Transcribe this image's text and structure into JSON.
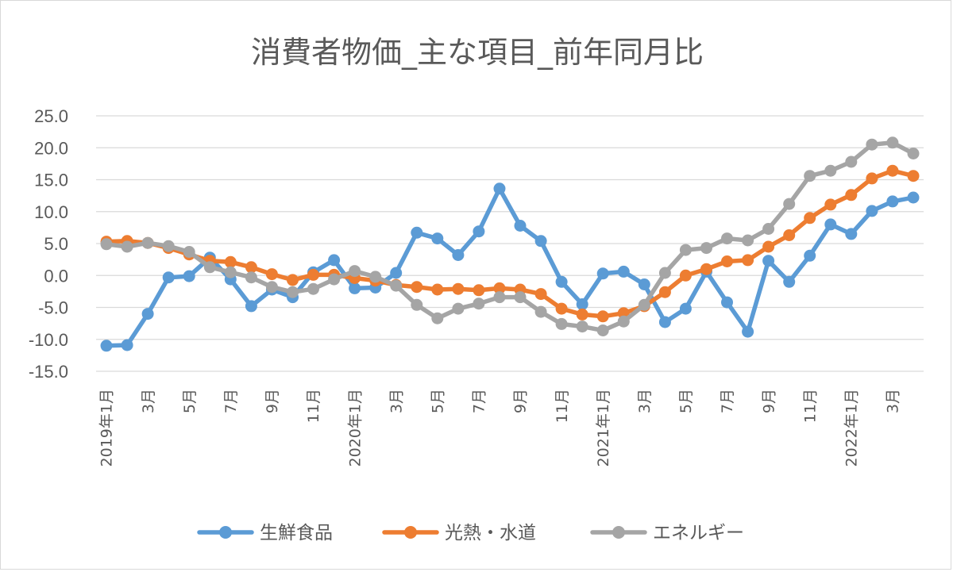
{
  "chart_data": {
    "type": "line",
    "title": "消費者物価_主な項目_前年同月比",
    "xlabel": "",
    "ylabel": "",
    "ylim": [
      -15,
      25
    ],
    "yticks": [
      "25.0",
      "20.0",
      "15.0",
      "10.0",
      "5.0",
      "0.0",
      "-5.0",
      "-10.0",
      "-15.0"
    ],
    "grid": true,
    "legend": "bottom",
    "categories": [
      "2019年1月",
      "",
      "3月",
      "",
      "5月",
      "",
      "7月",
      "",
      "9月",
      "",
      "11月",
      "",
      "2020年1月",
      "",
      "3月",
      "",
      "5月",
      "",
      "7月",
      "",
      "9月",
      "",
      "11月",
      "",
      "2021年1月",
      "",
      "3月",
      "",
      "5月",
      "",
      "7月",
      "",
      "9月",
      "",
      "11月",
      "",
      "2022年1月",
      "",
      "3月",
      ""
    ],
    "series": [
      {
        "name": "生鮮食品",
        "color": "#5b9bd5",
        "values": [
          -11.0,
          -10.9,
          -6.0,
          -0.3,
          -0.1,
          2.8,
          -0.6,
          -4.8,
          -2.2,
          -3.4,
          0.5,
          2.4,
          -2.0,
          -1.9,
          0.4,
          6.7,
          5.8,
          3.2,
          6.9,
          13.6,
          7.8,
          5.4,
          -1.0,
          -4.5,
          0.3,
          0.6,
          -1.4,
          -7.3,
          -5.2,
          0.6,
          -4.2,
          -8.8,
          2.3,
          -1.0,
          3.1,
          8.0,
          6.5,
          10.1,
          11.6,
          12.2
        ]
      },
      {
        "name": "光熱・水道",
        "color": "#ed7d31",
        "values": [
          5.3,
          5.4,
          5.1,
          4.3,
          3.3,
          2.3,
          2.1,
          1.3,
          0.2,
          -0.7,
          0.1,
          0.1,
          -0.4,
          -0.8,
          -1.5,
          -1.8,
          -2.2,
          -2.1,
          -2.3,
          -2.0,
          -2.2,
          -2.9,
          -5.2,
          -6.1,
          -6.4,
          -5.9,
          -4.8,
          -2.6,
          0.0,
          1.0,
          2.2,
          2.4,
          4.5,
          6.3,
          9.0,
          11.1,
          12.6,
          15.2,
          16.4,
          15.6
        ]
      },
      {
        "name": "エネルギー",
        "color": "#a5a5a5",
        "values": [
          4.9,
          4.5,
          5.1,
          4.6,
          3.7,
          1.3,
          0.5,
          -0.3,
          -1.8,
          -2.6,
          -2.1,
          -0.6,
          0.7,
          -0.2,
          -1.6,
          -4.6,
          -6.7,
          -5.2,
          -4.4,
          -3.4,
          -3.4,
          -5.7,
          -7.6,
          -8.0,
          -8.6,
          -7.2,
          -4.6,
          0.4,
          4.0,
          4.3,
          5.8,
          5.5,
          7.3,
          11.2,
          15.6,
          16.4,
          17.8,
          20.5,
          20.8,
          19.1
        ]
      }
    ]
  }
}
